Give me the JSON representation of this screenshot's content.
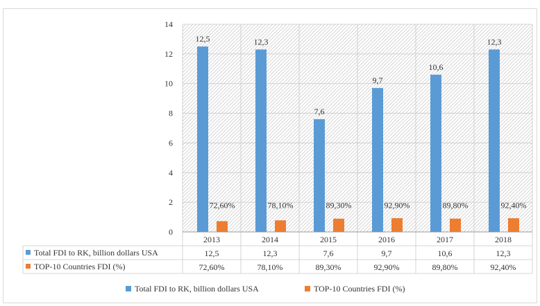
{
  "chart_data": {
    "type": "bar",
    "categories": [
      "2013",
      "2014",
      "2015",
      "2016",
      "2017",
      "2018"
    ],
    "series": [
      {
        "name": "Total FDI to RK, billion dollars USA",
        "values": [
          12.5,
          12.3,
          7.6,
          9.7,
          10.6,
          12.3
        ],
        "data_labels": [
          "12,5",
          "12,3",
          "7,6",
          "9,7",
          "10,6",
          "12,3"
        ],
        "table_values": [
          "12,5",
          "12,3",
          "7,6",
          "9,7",
          "10,6",
          "12,3"
        ],
        "color": "#5b9bd5"
      },
      {
        "name": "TOP-10 Countries FDI (%)",
        "values": [
          0.726,
          0.781,
          0.893,
          0.929,
          0.898,
          0.924
        ],
        "data_labels": [
          "72,60%",
          "78,10%",
          "89,30%",
          "92,90%",
          "89,80%",
          "92,40%"
        ],
        "table_values": [
          "72,60%",
          "78,10%",
          "89,30%",
          "92,90%",
          "89,80%",
          "92,40%"
        ],
        "color": "#ed7d31"
      }
    ],
    "y_ticks": [
      "0",
      "2",
      "4",
      "6",
      "8",
      "10",
      "12",
      "14"
    ],
    "ylim": [
      0,
      14
    ],
    "grid": true,
    "legend_position": "bottom",
    "data_table": true
  }
}
